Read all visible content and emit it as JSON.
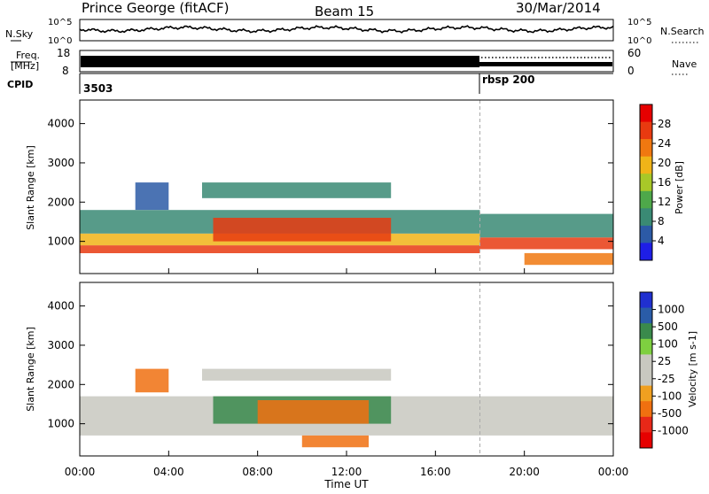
{
  "header": {
    "station": "Prince George (fitACF)",
    "beam": "Beam 15",
    "date": "30/Mar/2014"
  },
  "top_panels": {
    "nsky_label": "N.Sky",
    "nsky_scale_left": [
      "10^5",
      "10^0"
    ],
    "nsky_scale_right": [
      "10^5",
      "10^0"
    ],
    "nsearch_label": "N.Search",
    "freq_label_1": "Freq.",
    "freq_label_2": "[MHz]",
    "freq_ticks": [
      "18",
      "8"
    ],
    "nave_label": "Nave",
    "nave_ticks": [
      "60",
      "0"
    ],
    "cpid_label": "CPID",
    "cpid_values": [
      "3503",
      "rbsp 200"
    ]
  },
  "colors": {
    "power_scale": [
      "#1e1ee6",
      "#2c5aa6",
      "#3a8a74",
      "#4ea84a",
      "#a8c828",
      "#f0b418",
      "#f07810",
      "#e83a10",
      "#e60000"
    ],
    "velocity_scale": [
      "#2030d0",
      "#2a5ca8",
      "#3a8a4c",
      "#7ed040",
      "#c8c8c0",
      "#c8c8c0",
      "#f0a020",
      "#f07010",
      "#e82818",
      "#e60000"
    ],
    "ground_scatter": "#c8c8c0"
  },
  "chart_data": [
    {
      "type": "heatmap",
      "name": "power",
      "ylabel": "Slant Range [km]",
      "yticks": [
        1000,
        2000,
        3000,
        4000
      ],
      "ylim": [
        180,
        4600
      ],
      "xlabel": "Time UT",
      "xticks": [
        "00:00",
        "04:00",
        "08:00",
        "12:00",
        "16:00",
        "20:00",
        "00:00"
      ],
      "xlim_hours": [
        0,
        24
      ],
      "colorbar": {
        "label": "Power [dB]",
        "ticks": [
          "4",
          "8",
          "12",
          "16",
          "20",
          "24",
          "28"
        ]
      },
      "regions": [
        {
          "t": [
            0,
            18
          ],
          "r": [
            700,
            900
          ],
          "level": 28
        },
        {
          "t": [
            0,
            18
          ],
          "r": [
            900,
            1200
          ],
          "level": 20
        },
        {
          "t": [
            0,
            18
          ],
          "r": [
            1200,
            1800
          ],
          "level": 10
        },
        {
          "t": [
            6,
            14
          ],
          "r": [
            1000,
            1600
          ],
          "level": 26
        },
        {
          "t": [
            5.5,
            14
          ],
          "r": [
            2100,
            2500
          ],
          "level": 10
        },
        {
          "t": [
            2.5,
            4
          ],
          "r": [
            1800,
            2500
          ],
          "level": 6
        },
        {
          "t": [
            18,
            24
          ],
          "r": [
            800,
            1100
          ],
          "level": 26
        },
        {
          "t": [
            18,
            24
          ],
          "r": [
            1100,
            1700
          ],
          "level": 8
        },
        {
          "t": [
            20,
            24
          ],
          "r": [
            400,
            700
          ],
          "level": 24
        }
      ]
    },
    {
      "type": "heatmap",
      "name": "velocity",
      "ylabel": "Slant Range [km]",
      "yticks": [
        1000,
        2000,
        3000,
        4000
      ],
      "ylim": [
        180,
        4600
      ],
      "xlabel": "Time UT",
      "xticks": [
        "00:00",
        "04:00",
        "08:00",
        "12:00",
        "16:00",
        "20:00",
        "00:00"
      ],
      "xlim_hours": [
        0,
        24
      ],
      "colorbar": {
        "label": "Velocity [m s-1]",
        "ticks": [
          "1000",
          "500",
          "100",
          "25",
          "-25",
          "-100",
          "-500",
          "-1000"
        ]
      },
      "regions": [
        {
          "t": [
            0,
            24
          ],
          "r": [
            700,
            1700
          ],
          "level": 0,
          "ground": true
        },
        {
          "t": [
            6,
            14
          ],
          "r": [
            1000,
            1700
          ],
          "level": 300
        },
        {
          "t": [
            8,
            13
          ],
          "r": [
            1000,
            1600
          ],
          "level": -300
        },
        {
          "t": [
            2.5,
            4
          ],
          "r": [
            1800,
            2400
          ],
          "level": -300
        },
        {
          "t": [
            5.5,
            14
          ],
          "r": [
            2100,
            2400
          ],
          "level": 0,
          "ground": true
        },
        {
          "t": [
            10,
            13
          ],
          "r": [
            400,
            700
          ],
          "level": -300
        }
      ]
    }
  ]
}
